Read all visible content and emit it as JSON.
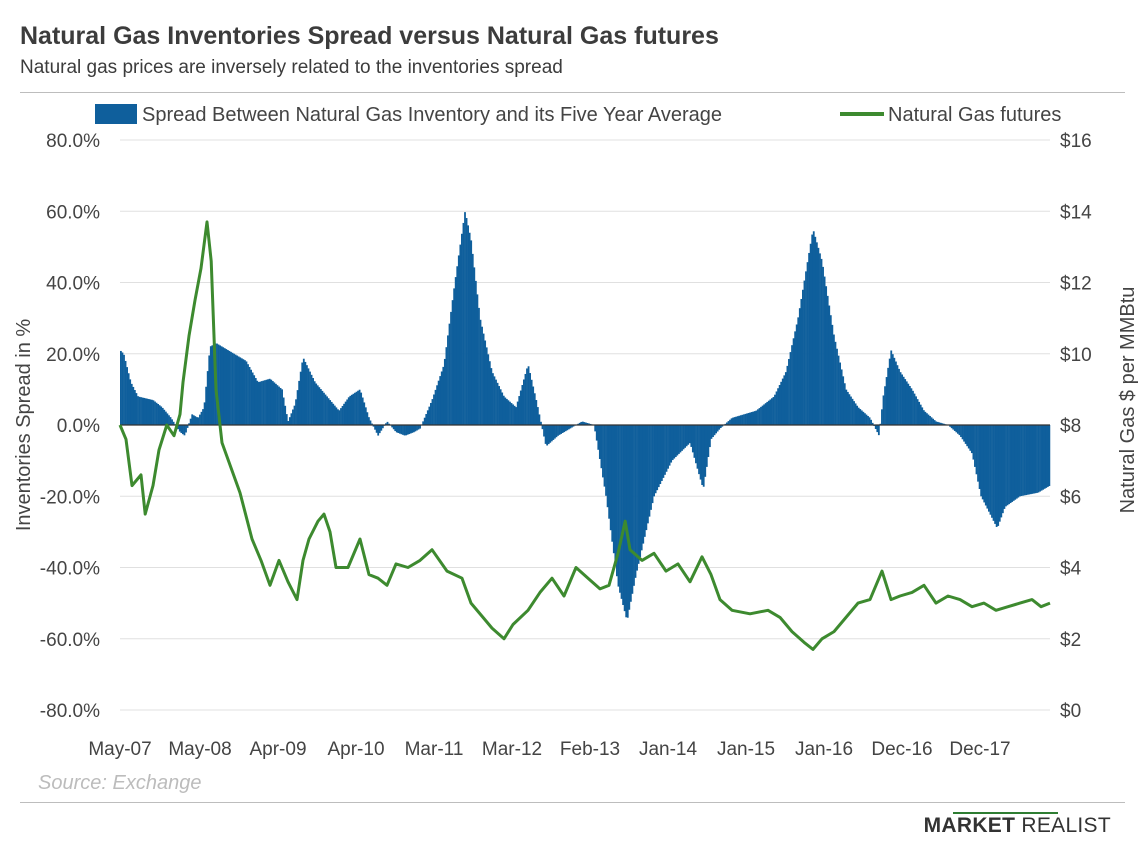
{
  "header": {
    "title": "Natural Gas Inventories Spread versus Natural Gas futures",
    "subtitle": "Natural gas prices are inversely related to the inventories spread"
  },
  "footer": {
    "source": "Source: Exchange",
    "brand_part1": "MARKET",
    "brand_part2": "REALIST"
  },
  "colors": {
    "bar": "#0f5f9c",
    "line": "#3d8a2f",
    "grid": "#e0e0e0"
  },
  "chart_data": {
    "type": "bar+line",
    "title": "Natural Gas Inventories Spread versus Natural Gas futures",
    "subtitle": "Natural gas prices are inversely related to the inventories spread",
    "ylabel_left": "Inventories Spread in %",
    "ylabel_right": "Natural Gas $ per MMBtu",
    "ylim_left": [
      -80,
      80
    ],
    "ylim_right": [
      0,
      16
    ],
    "left_ticks": [
      "80.0%",
      "60.0%",
      "40.0%",
      "20.0%",
      "0.0%",
      "-20.0%",
      "-40.0%",
      "-60.0%",
      "-80.0%"
    ],
    "right_ticks": [
      "$16",
      "$14",
      "$12",
      "$10",
      "$8",
      "$6",
      "$4",
      "$2",
      "$0"
    ],
    "x_ticks": [
      "May-07",
      "May-08",
      "Apr-09",
      "Apr-10",
      "Mar-11",
      "Mar-12",
      "Feb-13",
      "Jan-14",
      "Jan-15",
      "Jan-16",
      "Dec-16",
      "Dec-17"
    ],
    "grid": true,
    "legend_position": "top",
    "series": [
      {
        "name": "Spread Between Natural Gas  Inventory and its Five Year Average",
        "type": "bar",
        "axis": "left",
        "points": [
          [
            0,
            21
          ],
          [
            0.06,
            20
          ],
          [
            0.18,
            12
          ],
          [
            0.3,
            8
          ],
          [
            0.55,
            7
          ],
          [
            0.7,
            5
          ],
          [
            0.85,
            2
          ],
          [
            1.0,
            -2
          ],
          [
            1.08,
            -3
          ],
          [
            1.2,
            3
          ],
          [
            1.3,
            2
          ],
          [
            1.4,
            5
          ],
          [
            1.5,
            22
          ],
          [
            1.6,
            23
          ],
          [
            1.8,
            21
          ],
          [
            2.1,
            18
          ],
          [
            2.3,
            12
          ],
          [
            2.5,
            13
          ],
          [
            2.7,
            10
          ],
          [
            2.8,
            1
          ],
          [
            2.92,
            6
          ],
          [
            3.05,
            19
          ],
          [
            3.25,
            12
          ],
          [
            3.45,
            8
          ],
          [
            3.65,
            4
          ],
          [
            3.82,
            8
          ],
          [
            4.0,
            10
          ],
          [
            4.15,
            2
          ],
          [
            4.3,
            -3
          ],
          [
            4.45,
            1
          ],
          [
            4.6,
            -2
          ],
          [
            4.75,
            -3
          ],
          [
            4.9,
            -2
          ],
          [
            5.0,
            -1
          ],
          [
            5.2,
            7
          ],
          [
            5.4,
            17
          ],
          [
            5.58,
            40
          ],
          [
            5.75,
            60
          ],
          [
            5.85,
            52
          ],
          [
            6.0,
            30
          ],
          [
            6.2,
            15
          ],
          [
            6.4,
            8
          ],
          [
            6.6,
            5
          ],
          [
            6.8,
            17
          ],
          [
            6.95,
            6
          ],
          [
            7.1,
            -6
          ],
          [
            7.3,
            -3
          ],
          [
            7.5,
            -1
          ],
          [
            7.7,
            1
          ],
          [
            7.9,
            0
          ],
          [
            8.1,
            -20
          ],
          [
            8.3,
            -45
          ],
          [
            8.45,
            -55
          ],
          [
            8.6,
            -42
          ],
          [
            8.9,
            -20
          ],
          [
            9.2,
            -10
          ],
          [
            9.5,
            -5
          ],
          [
            9.72,
            -18
          ],
          [
            9.85,
            -4
          ],
          [
            10.0,
            -1
          ],
          [
            10.2,
            2
          ],
          [
            10.6,
            4
          ],
          [
            10.9,
            8
          ],
          [
            11.1,
            15
          ],
          [
            11.3,
            30
          ],
          [
            11.45,
            45
          ],
          [
            11.55,
            55
          ],
          [
            11.7,
            46
          ],
          [
            11.9,
            25
          ],
          [
            12.1,
            10
          ],
          [
            12.3,
            5
          ],
          [
            12.5,
            2
          ],
          [
            12.65,
            -3
          ],
          [
            12.72,
            8
          ],
          [
            12.85,
            21
          ],
          [
            13.0,
            15
          ],
          [
            13.2,
            10
          ],
          [
            13.4,
            4
          ],
          [
            13.6,
            1
          ],
          [
            13.8,
            0
          ],
          [
            14.0,
            -3
          ],
          [
            14.2,
            -8
          ],
          [
            14.35,
            -20
          ],
          [
            14.5,
            -25
          ],
          [
            14.62,
            -29
          ],
          [
            14.75,
            -23
          ],
          [
            15.0,
            -20
          ],
          [
            15.3,
            -19
          ],
          [
            15.5,
            -17
          ]
        ]
      },
      {
        "name": "Natural Gas futures",
        "type": "line",
        "axis": "right",
        "points": [
          [
            0,
            8.0
          ],
          [
            0.1,
            7.6
          ],
          [
            0.2,
            6.3
          ],
          [
            0.35,
            6.6
          ],
          [
            0.42,
            5.5
          ],
          [
            0.55,
            6.3
          ],
          [
            0.65,
            7.3
          ],
          [
            0.78,
            8.0
          ],
          [
            0.9,
            7.7
          ],
          [
            1.0,
            8.3
          ],
          [
            1.05,
            9.2
          ],
          [
            1.15,
            10.5
          ],
          [
            1.25,
            11.5
          ],
          [
            1.35,
            12.4
          ],
          [
            1.45,
            13.7
          ],
          [
            1.52,
            12.6
          ],
          [
            1.6,
            9.0
          ],
          [
            1.7,
            7.5
          ],
          [
            1.85,
            6.8
          ],
          [
            2.0,
            6.1
          ],
          [
            2.2,
            4.8
          ],
          [
            2.35,
            4.2
          ],
          [
            2.5,
            3.5
          ],
          [
            2.65,
            4.2
          ],
          [
            2.8,
            3.6
          ],
          [
            2.95,
            3.1
          ],
          [
            3.05,
            4.2
          ],
          [
            3.15,
            4.8
          ],
          [
            3.3,
            5.3
          ],
          [
            3.4,
            5.5
          ],
          [
            3.5,
            5.0
          ],
          [
            3.6,
            4.0
          ],
          [
            3.8,
            4.0
          ],
          [
            4.0,
            4.8
          ],
          [
            4.15,
            3.8
          ],
          [
            4.3,
            3.7
          ],
          [
            4.45,
            3.5
          ],
          [
            4.6,
            4.1
          ],
          [
            4.8,
            4.0
          ],
          [
            5.0,
            4.2
          ],
          [
            5.2,
            4.5
          ],
          [
            5.45,
            3.9
          ],
          [
            5.7,
            3.7
          ],
          [
            5.85,
            3.0
          ],
          [
            6.05,
            2.6
          ],
          [
            6.2,
            2.3
          ],
          [
            6.4,
            2.0
          ],
          [
            6.55,
            2.4
          ],
          [
            6.8,
            2.8
          ],
          [
            7.0,
            3.3
          ],
          [
            7.2,
            3.7
          ],
          [
            7.4,
            3.2
          ],
          [
            7.6,
            4.0
          ],
          [
            7.8,
            3.7
          ],
          [
            8.0,
            3.4
          ],
          [
            8.15,
            3.5
          ],
          [
            8.3,
            4.4
          ],
          [
            8.42,
            5.3
          ],
          [
            8.5,
            4.5
          ],
          [
            8.7,
            4.2
          ],
          [
            8.9,
            4.4
          ],
          [
            9.1,
            3.9
          ],
          [
            9.3,
            4.1
          ],
          [
            9.5,
            3.6
          ],
          [
            9.7,
            4.3
          ],
          [
            9.85,
            3.8
          ],
          [
            10.0,
            3.1
          ],
          [
            10.2,
            2.8
          ],
          [
            10.5,
            2.7
          ],
          [
            10.8,
            2.8
          ],
          [
            11.0,
            2.6
          ],
          [
            11.2,
            2.2
          ],
          [
            11.4,
            1.9
          ],
          [
            11.55,
            1.7
          ],
          [
            11.7,
            2.0
          ],
          [
            11.9,
            2.2
          ],
          [
            12.1,
            2.6
          ],
          [
            12.3,
            3.0
          ],
          [
            12.5,
            3.1
          ],
          [
            12.7,
            3.9
          ],
          [
            12.85,
            3.1
          ],
          [
            13.0,
            3.2
          ],
          [
            13.2,
            3.3
          ],
          [
            13.4,
            3.5
          ],
          [
            13.6,
            3.0
          ],
          [
            13.8,
            3.2
          ],
          [
            14.0,
            3.1
          ],
          [
            14.2,
            2.9
          ],
          [
            14.4,
            3.0
          ],
          [
            14.6,
            2.8
          ],
          [
            14.8,
            2.9
          ],
          [
            15.0,
            3.0
          ],
          [
            15.2,
            3.1
          ],
          [
            15.35,
            2.9
          ],
          [
            15.5,
            3.0
          ]
        ]
      }
    ]
  }
}
